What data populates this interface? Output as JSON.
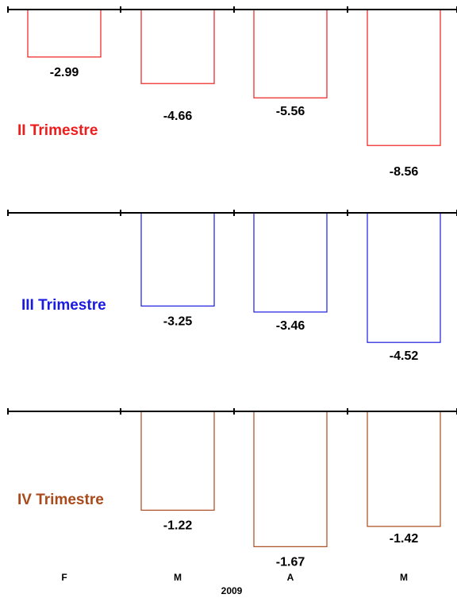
{
  "chart_data": {
    "type": "bar",
    "categories": [
      "F",
      "M",
      "A",
      "M"
    ],
    "xlabel": "2009",
    "panels": [
      {
        "name": "II Trimestre",
        "color": "#ee1c1c",
        "values": [
          -2.99,
          -4.66,
          -5.56,
          -8.56
        ],
        "value_labels": [
          "-2.99",
          "-4.66",
          "-5.56",
          "-8.56"
        ]
      },
      {
        "name": "III Trimestre",
        "color": "#1a1ae0",
        "values": [
          null,
          -3.25,
          -3.46,
          -4.52
        ],
        "value_labels": [
          "",
          "-3.25",
          "-3.46",
          "-4.52"
        ]
      },
      {
        "name": "IV Trimestre",
        "color": "#a94a1c",
        "values": [
          null,
          -1.22,
          -1.67,
          -1.42
        ],
        "value_labels": [
          "",
          "-1.22",
          "-1.67",
          "-1.42"
        ]
      }
    ]
  }
}
